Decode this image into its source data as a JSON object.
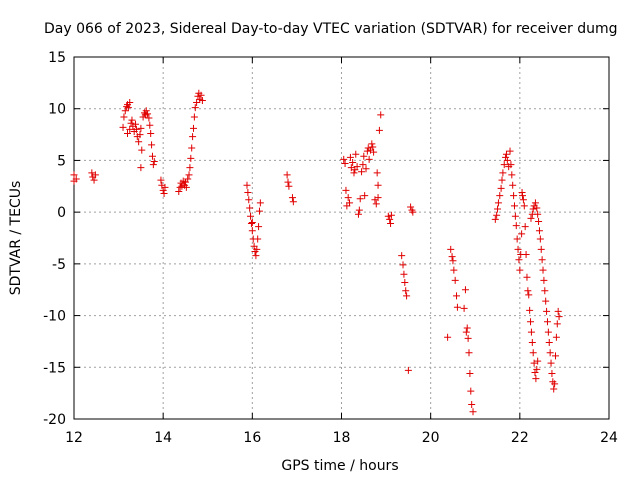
{
  "chart_data": {
    "type": "scatter",
    "title": "Day 066 of 2023, Sidereal Day-to-day VTEC variation (SDTVAR) for receiver dumg",
    "xlabel": "GPS time / hours",
    "ylabel": "SDTVAR / TECUs",
    "xlim": [
      12,
      24
    ],
    "ylim": [
      -20,
      15
    ],
    "xticks": [
      "12",
      "14",
      "16",
      "18",
      "20",
      "22",
      "24"
    ],
    "yticks": [
      "15",
      "10",
      "5",
      "0",
      "-5",
      "-10",
      "-15",
      "-20"
    ],
    "grid": true,
    "marker": "+",
    "color": "#e00000",
    "series": [
      {
        "name": "SDTVAR",
        "points": [
          [
            12.0,
            3.0
          ],
          [
            12.0,
            3.6
          ],
          [
            12.05,
            3.2
          ],
          [
            12.4,
            3.8
          ],
          [
            12.42,
            3.4
          ],
          [
            12.45,
            3.1
          ],
          [
            12.48,
            3.6
          ],
          [
            13.1,
            8.2
          ],
          [
            13.12,
            9.2
          ],
          [
            13.15,
            9.8
          ],
          [
            13.18,
            10.2
          ],
          [
            13.2,
            10.4
          ],
          [
            13.22,
            10.1
          ],
          [
            13.25,
            10.6
          ],
          [
            13.2,
            7.6
          ],
          [
            13.25,
            8.0
          ],
          [
            13.28,
            8.6
          ],
          [
            13.3,
            8.9
          ],
          [
            13.32,
            8.3
          ],
          [
            13.35,
            7.8
          ],
          [
            13.38,
            8.5
          ],
          [
            13.4,
            8.0
          ],
          [
            13.42,
            7.3
          ],
          [
            13.45,
            6.8
          ],
          [
            13.48,
            7.5
          ],
          [
            13.5,
            8.1
          ],
          [
            13.5,
            4.3
          ],
          [
            13.52,
            6.0
          ],
          [
            13.55,
            9.2
          ],
          [
            13.58,
            9.6
          ],
          [
            13.6,
            9.4
          ],
          [
            13.62,
            9.8
          ],
          [
            13.65,
            9.5
          ],
          [
            13.68,
            9.1
          ],
          [
            13.7,
            8.4
          ],
          [
            13.72,
            7.6
          ],
          [
            13.74,
            6.5
          ],
          [
            13.76,
            5.4
          ],
          [
            13.78,
            4.6
          ],
          [
            13.8,
            4.9
          ],
          [
            13.95,
            3.1
          ],
          [
            13.97,
            2.6
          ],
          [
            14.0,
            2.1
          ],
          [
            14.02,
            1.8
          ],
          [
            14.04,
            2.4
          ],
          [
            14.35,
            2.0
          ],
          [
            14.38,
            2.4
          ],
          [
            14.4,
            2.8
          ],
          [
            14.42,
            2.5
          ],
          [
            14.45,
            3.0
          ],
          [
            14.48,
            2.6
          ],
          [
            14.5,
            2.9
          ],
          [
            14.52,
            2.4
          ],
          [
            14.55,
            3.2
          ],
          [
            14.58,
            3.6
          ],
          [
            14.6,
            4.3
          ],
          [
            14.62,
            5.2
          ],
          [
            14.64,
            6.2
          ],
          [
            14.66,
            7.3
          ],
          [
            14.68,
            8.1
          ],
          [
            14.7,
            9.2
          ],
          [
            14.72,
            10.1
          ],
          [
            14.75,
            10.6
          ],
          [
            14.78,
            11.2
          ],
          [
            14.8,
            11.5
          ],
          [
            14.82,
            10.9
          ],
          [
            14.85,
            11.3
          ],
          [
            14.88,
            10.8
          ],
          [
            15.88,
            2.6
          ],
          [
            15.9,
            1.9
          ],
          [
            15.92,
            1.2
          ],
          [
            15.94,
            0.4
          ],
          [
            15.96,
            -0.4
          ],
          [
            15.98,
            -1.1
          ],
          [
            16.0,
            -1.8
          ],
          [
            16.02,
            -2.6
          ],
          [
            16.04,
            -3.3
          ],
          [
            16.06,
            -3.8
          ],
          [
            16.08,
            -4.2
          ],
          [
            16.1,
            -3.6
          ],
          [
            16.12,
            -2.6
          ],
          [
            16.14,
            -1.4
          ],
          [
            16.16,
            0.1
          ],
          [
            16.18,
            0.9
          ],
          [
            16.0,
            -1.0
          ],
          [
            16.78,
            3.6
          ],
          [
            16.8,
            2.9
          ],
          [
            16.82,
            2.5
          ],
          [
            16.9,
            1.4
          ],
          [
            16.92,
            1.0
          ],
          [
            18.05,
            5.1
          ],
          [
            18.08,
            4.7
          ],
          [
            18.1,
            2.1
          ],
          [
            18.12,
            0.6
          ],
          [
            18.15,
            1.4
          ],
          [
            18.18,
            0.9
          ],
          [
            18.2,
            5.3
          ],
          [
            18.22,
            4.3
          ],
          [
            18.25,
            4.8
          ],
          [
            18.28,
            3.8
          ],
          [
            18.3,
            4.1
          ],
          [
            18.32,
            5.6
          ],
          [
            18.35,
            4.4
          ],
          [
            18.38,
            -0.2
          ],
          [
            18.4,
            0.2
          ],
          [
            18.42,
            1.3
          ],
          [
            18.45,
            3.9
          ],
          [
            18.48,
            4.6
          ],
          [
            18.5,
            5.4
          ],
          [
            18.52,
            1.6
          ],
          [
            18.55,
            4.2
          ],
          [
            18.58,
            5.9
          ],
          [
            18.6,
            6.2
          ],
          [
            18.62,
            5.1
          ],
          [
            18.65,
            6.0
          ],
          [
            18.68,
            6.6
          ],
          [
            18.7,
            6.3
          ],
          [
            18.72,
            5.8
          ],
          [
            18.75,
            1.2
          ],
          [
            18.78,
            0.8
          ],
          [
            18.8,
            3.8
          ],
          [
            18.82,
            2.6
          ],
          [
            18.85,
            7.9
          ],
          [
            18.88,
            9.4
          ],
          [
            18.82,
            1.4
          ],
          [
            19.05,
            -0.4
          ],
          [
            19.08,
            -0.7
          ],
          [
            19.1,
            -1.1
          ],
          [
            19.12,
            -0.3
          ],
          [
            19.35,
            -4.2
          ],
          [
            19.38,
            -5.1
          ],
          [
            19.4,
            -6.0
          ],
          [
            19.42,
            -6.8
          ],
          [
            19.44,
            -7.6
          ],
          [
            19.46,
            -8.1
          ],
          [
            19.5,
            -15.3
          ],
          [
            19.55,
            0.5
          ],
          [
            19.58,
            0.2
          ],
          [
            19.6,
            0.0
          ],
          [
            20.38,
            -12.1
          ],
          [
            20.45,
            -3.6
          ],
          [
            20.48,
            -4.3
          ],
          [
            20.5,
            -4.7
          ],
          [
            20.52,
            -5.6
          ],
          [
            20.55,
            -6.6
          ],
          [
            20.58,
            -8.1
          ],
          [
            20.6,
            -9.2
          ],
          [
            20.75,
            -9.3
          ],
          [
            20.78,
            -7.5
          ],
          [
            20.8,
            -11.6
          ],
          [
            20.82,
            -11.2
          ],
          [
            20.84,
            -12.2
          ],
          [
            20.86,
            -13.6
          ],
          [
            20.88,
            -15.6
          ],
          [
            20.9,
            -17.3
          ],
          [
            20.92,
            -18.6
          ],
          [
            20.95,
            -19.3
          ],
          [
            21.45,
            -0.7
          ],
          [
            21.48,
            -0.3
          ],
          [
            21.5,
            0.3
          ],
          [
            21.52,
            0.9
          ],
          [
            21.55,
            1.6
          ],
          [
            21.58,
            2.3
          ],
          [
            21.6,
            3.1
          ],
          [
            21.62,
            3.8
          ],
          [
            21.65,
            4.6
          ],
          [
            21.68,
            5.3
          ],
          [
            21.7,
            5.6
          ],
          [
            21.72,
            5.0
          ],
          [
            21.75,
            4.4
          ],
          [
            21.78,
            5.9
          ],
          [
            21.8,
            4.6
          ],
          [
            21.82,
            3.6
          ],
          [
            21.84,
            2.6
          ],
          [
            21.86,
            1.6
          ],
          [
            21.88,
            0.6
          ],
          [
            21.9,
            -0.4
          ],
          [
            21.92,
            -1.3
          ],
          [
            21.94,
            -2.6
          ],
          [
            21.96,
            -3.6
          ],
          [
            21.98,
            -4.6
          ],
          [
            22.0,
            -5.6
          ],
          [
            22.02,
            -4.1
          ],
          [
            22.04,
            -2.1
          ],
          [
            22.05,
            1.9
          ],
          [
            22.06,
            1.6
          ],
          [
            22.08,
            1.2
          ],
          [
            22.1,
            0.6
          ],
          [
            22.12,
            -1.4
          ],
          [
            22.14,
            -4.1
          ],
          [
            22.16,
            -6.3
          ],
          [
            22.18,
            -7.6
          ],
          [
            22.2,
            -8.0
          ],
          [
            22.22,
            -9.5
          ],
          [
            22.24,
            -10.6
          ],
          [
            22.26,
            -11.6
          ],
          [
            22.28,
            -12.6
          ],
          [
            22.3,
            -13.6
          ],
          [
            22.32,
            -14.6
          ],
          [
            22.34,
            -15.5
          ],
          [
            22.36,
            -16.1
          ],
          [
            22.38,
            -15.2
          ],
          [
            22.4,
            -14.4
          ],
          [
            22.25,
            -0.6
          ],
          [
            22.28,
            -0.2
          ],
          [
            22.3,
            0.3
          ],
          [
            22.32,
            0.6
          ],
          [
            22.35,
            0.9
          ],
          [
            22.38,
            0.4
          ],
          [
            22.4,
            -0.2
          ],
          [
            22.42,
            -0.9
          ],
          [
            22.44,
            -1.8
          ],
          [
            22.46,
            -2.6
          ],
          [
            22.48,
            -3.6
          ],
          [
            22.5,
            -4.6
          ],
          [
            22.52,
            -5.6
          ],
          [
            22.54,
            -6.6
          ],
          [
            22.56,
            -7.6
          ],
          [
            22.58,
            -8.6
          ],
          [
            22.6,
            -9.6
          ],
          [
            22.62,
            -10.6
          ],
          [
            22.64,
            -11.6
          ],
          [
            22.66,
            -12.6
          ],
          [
            22.68,
            -13.6
          ],
          [
            22.7,
            -14.6
          ],
          [
            22.72,
            -15.6
          ],
          [
            22.74,
            -16.4
          ],
          [
            22.76,
            -17.1
          ],
          [
            22.78,
            -16.6
          ],
          [
            22.8,
            -13.9
          ],
          [
            22.82,
            -12.1
          ],
          [
            22.84,
            -10.8
          ],
          [
            22.86,
            -9.6
          ],
          [
            22.88,
            -10.1
          ]
        ]
      }
    ]
  }
}
